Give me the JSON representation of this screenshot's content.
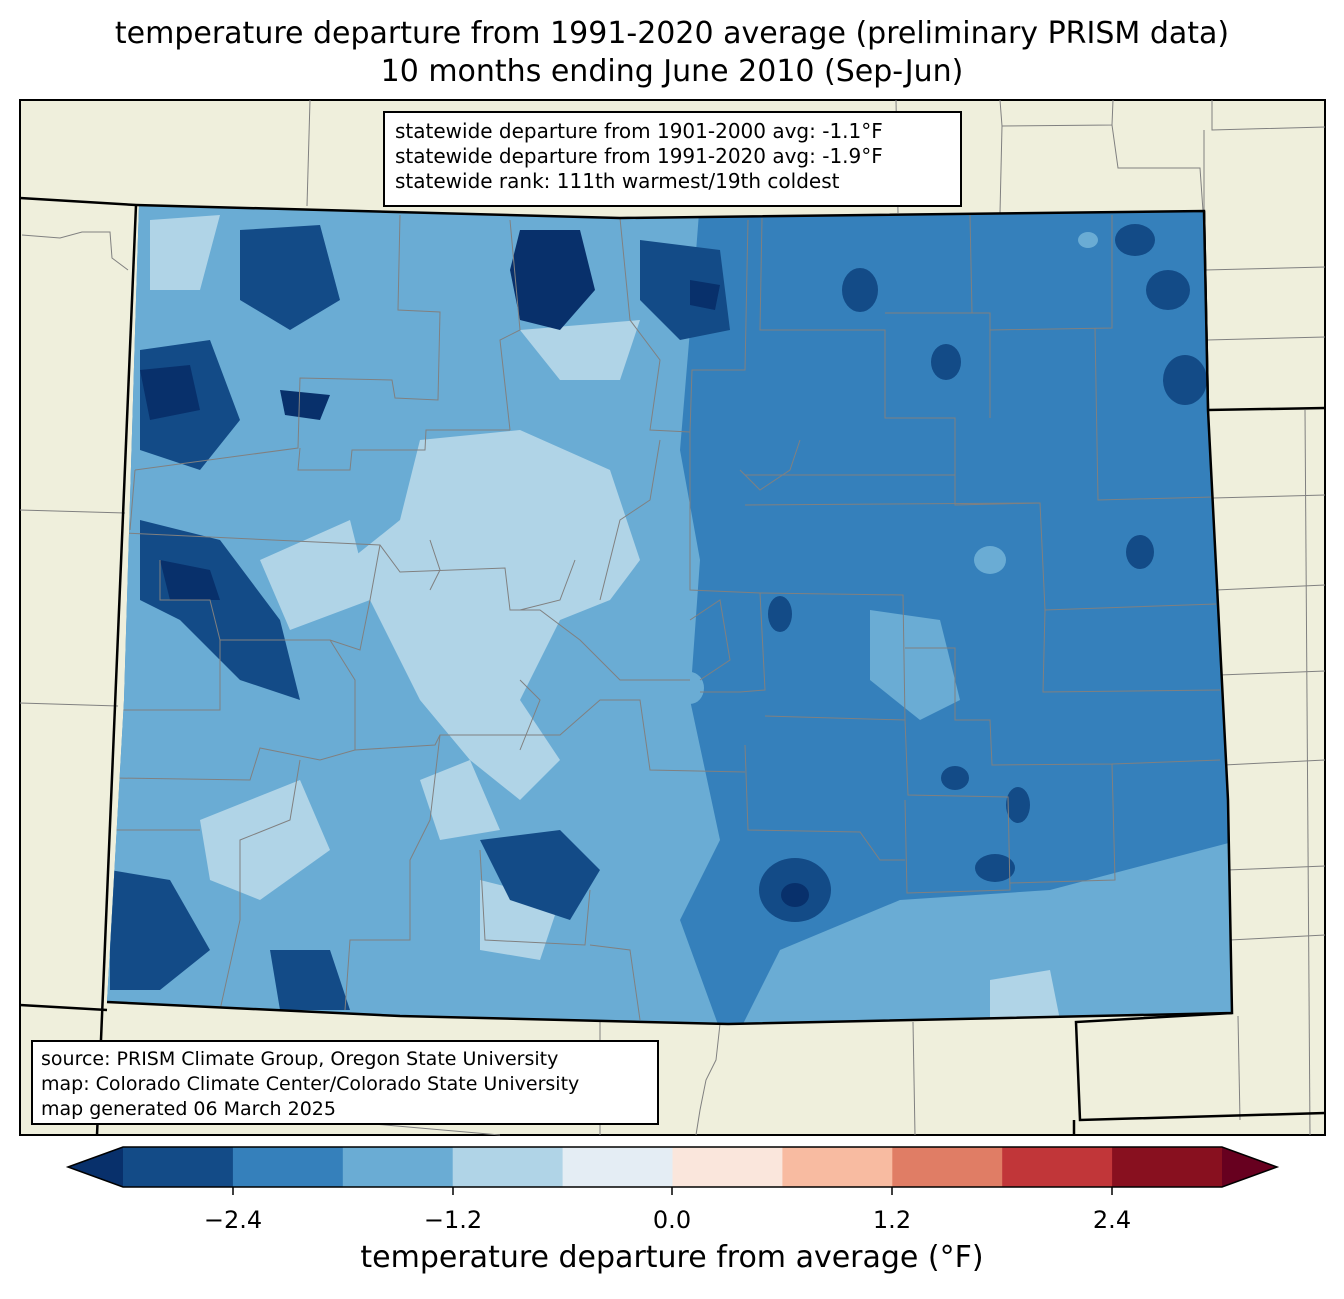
{
  "title": {
    "line1": "temperature departure from 1991-2020 average (preliminary PRISM data)",
    "line2": "10 months ending June 2010 (Sep-Jun)"
  },
  "stats_box": {
    "line1": "statewide departure from 1901-2000 avg: -1.1°F",
    "line2": "statewide departure from 1991-2020 avg: -1.9°F",
    "line3": "statewide rank: 111th warmest/19th coldest"
  },
  "source_box": {
    "line1": "source: PRISM Climate Group, Oregon State University",
    "line2": "map: Colorado Climate Center/Colorado State University",
    "line3": "map generated 06 March 2025"
  },
  "colorbar": {
    "label": "temperature departure from average (°F)",
    "ticks": [
      "−2.4",
      "−1.2",
      "0.0",
      "1.2",
      "2.4"
    ],
    "colors": [
      "#08306b",
      "#134b87",
      "#3580bb",
      "#6aacd4",
      "#b0d4e7",
      "#e4edf4",
      "#fae6dc",
      "#f8bba1",
      "#e07d65",
      "#c13639",
      "#88101f",
      "#67001f"
    ]
  },
  "map": {
    "land_color": "#efefdc",
    "state_fill": "#3580bb"
  }
}
